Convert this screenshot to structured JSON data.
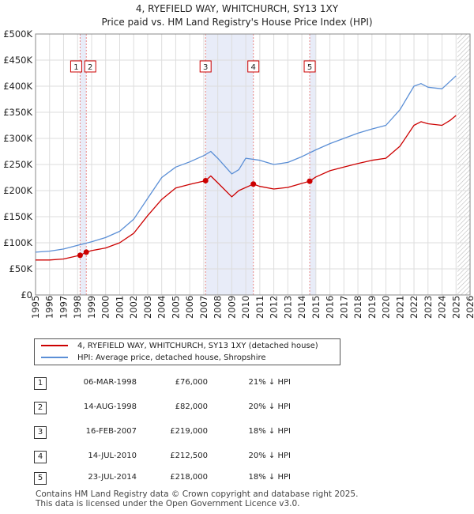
{
  "chart_data": {
    "type": "line",
    "title": "4, RYEFIELD WAY, WHITCHURCH, SY13 1XY",
    "subtitle": "Price paid vs. HM Land Registry's House Price Index (HPI)",
    "xlim": [
      1995,
      2026
    ],
    "ylim": [
      0,
      500000
    ],
    "x_ticks": [
      "1995",
      "1996",
      "1997",
      "1998",
      "1999",
      "2000",
      "2001",
      "2002",
      "2003",
      "2004",
      "2005",
      "2006",
      "2007",
      "2008",
      "2009",
      "2010",
      "2011",
      "2012",
      "2013",
      "2014",
      "2015",
      "2016",
      "2017",
      "2018",
      "2019",
      "2020",
      "2021",
      "2022",
      "2023",
      "2024",
      "2025",
      "2026"
    ],
    "y_ticks": [
      {
        "value": 0,
        "label": "£0"
      },
      {
        "value": 50000,
        "label": "£50K"
      },
      {
        "value": 100000,
        "label": "£100K"
      },
      {
        "value": 150000,
        "label": "£150K"
      },
      {
        "value": 200000,
        "label": "£200K"
      },
      {
        "value": 250000,
        "label": "£250K"
      },
      {
        "value": 300000,
        "label": "£300K"
      },
      {
        "value": 350000,
        "label": "£350K"
      },
      {
        "value": 400000,
        "label": "£400K"
      },
      {
        "value": 450000,
        "label": "£450K"
      },
      {
        "value": 500000,
        "label": "£500K"
      }
    ],
    "series": [
      {
        "name": "4, RYEFIELD WAY, WHITCHURCH, SY13 1XY (detached house)",
        "color": "#cc0000",
        "x": [
          1995,
          1996,
          1997,
          1998.18,
          1998.62,
          1999,
          2000,
          2001,
          2002,
          2003,
          2004,
          2005,
          2006,
          2007.13,
          2007.5,
          2008,
          2009,
          2009.5,
          2010.54,
          2011,
          2012,
          2013,
          2014.56,
          2015,
          2016,
          2017,
          2018,
          2019,
          2020,
          2021,
          2022,
          2022.5,
          2023,
          2024,
          2024.6,
          2025
        ],
        "values": [
          67000,
          67000,
          69000,
          76000,
          82000,
          85000,
          90000,
          100000,
          118000,
          152000,
          183000,
          205000,
          212000,
          219000,
          228000,
          215000,
          188000,
          200000,
          212500,
          208000,
          203000,
          206000,
          218000,
          226000,
          238000,
          245000,
          252000,
          258000,
          262000,
          285000,
          325000,
          332000,
          328000,
          325000,
          335000,
          344000
        ]
      },
      {
        "name": "HPI: Average price, detached house, Shropshire",
        "color": "#5b8fd6",
        "x": [
          1995,
          1996,
          1997,
          1998,
          1999,
          2000,
          2001,
          2002,
          2003,
          2004,
          2005,
          2006,
          2007,
          2007.5,
          2008,
          2009,
          2009.5,
          2010,
          2011,
          2012,
          2013,
          2014,
          2015,
          2016,
          2017,
          2018,
          2019,
          2020,
          2021,
          2022,
          2022.5,
          2023,
          2024,
          2025
        ],
        "values": [
          82000,
          84000,
          88000,
          95000,
          102000,
          110000,
          122000,
          145000,
          185000,
          225000,
          245000,
          255000,
          267000,
          275000,
          262000,
          232000,
          240000,
          262000,
          258000,
          250000,
          254000,
          265000,
          278000,
          290000,
          300000,
          310000,
          318000,
          325000,
          355000,
          400000,
          405000,
          398000,
          395000,
          420000
        ]
      }
    ],
    "sales": [
      {
        "label": "1",
        "x": 1998.18,
        "value": 76000
      },
      {
        "label": "2",
        "x": 1998.62,
        "value": 82000
      },
      {
        "label": "3",
        "x": 2007.13,
        "value": 219000
      },
      {
        "label": "4",
        "x": 2010.54,
        "value": 212500
      },
      {
        "label": "5",
        "x": 2014.56,
        "value": 218000
      }
    ],
    "shaded_periods": [
      [
        1998.18,
        1998.62
      ],
      [
        2007.13,
        2010.54
      ],
      [
        2014.56,
        2015
      ]
    ],
    "future_hatch_from": 2025.1
  },
  "legend": {
    "items": [
      {
        "label": "4, RYEFIELD WAY, WHITCHURCH, SY13 1XY (detached house)",
        "color": "#cc0000"
      },
      {
        "label": "HPI: Average price, detached house, Shropshire",
        "color": "#5b8fd6"
      }
    ]
  },
  "transactions": [
    {
      "num": "1",
      "date": "06-MAR-1998",
      "price": "£76,000",
      "hpi": "21% ↓ HPI"
    },
    {
      "num": "2",
      "date": "14-AUG-1998",
      "price": "£82,000",
      "hpi": "20% ↓ HPI"
    },
    {
      "num": "3",
      "date": "16-FEB-2007",
      "price": "£219,000",
      "hpi": "18% ↓ HPI"
    },
    {
      "num": "4",
      "date": "14-JUL-2010",
      "price": "£212,500",
      "hpi": "20% ↓ HPI"
    },
    {
      "num": "5",
      "date": "23-JUL-2014",
      "price": "£218,000",
      "hpi": "18% ↓ HPI"
    }
  ],
  "footer": {
    "line1": "Contains HM Land Registry data © Crown copyright and database right 2025.",
    "line2": "This data is licensed under the Open Government Licence v3.0."
  }
}
